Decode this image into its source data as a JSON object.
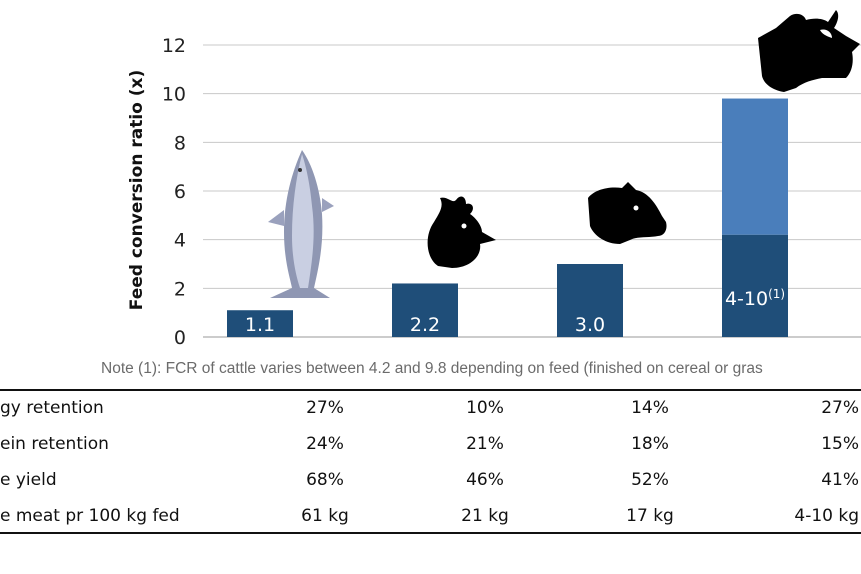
{
  "chart_data": {
    "type": "bar",
    "ylabel": "Feed conversion ratio (x)",
    "ylim": [
      0,
      12
    ],
    "yticks": [
      "0",
      "2",
      "4",
      "6",
      "8",
      "10",
      "12"
    ],
    "grid": true,
    "categories": [
      "Salmon",
      "Chicken",
      "Pig",
      "Cattle"
    ],
    "values": [
      1.1,
      2.2,
      3.0,
      4.2
    ],
    "range_upper": [
      null,
      null,
      null,
      9.8
    ],
    "data_labels": [
      "1.1",
      "2.2",
      "3.0",
      "4-10"
    ],
    "data_label_superscripts": [
      "",
      "",
      "",
      "(1)"
    ],
    "icons": [
      "salmon-icon",
      "chicken-icon",
      "pig-icon",
      "cow-icon"
    ],
    "colors": {
      "bar": "#1f4e79",
      "range": "#4a7ebb",
      "grid": "#c8c8c8"
    }
  },
  "note": "Note (1): FCR of cattle varies between 4.2 and 9.8 depending on feed (finished on cereal or gras",
  "table": {
    "rows": [
      {
        "label": "gy retention",
        "values": [
          "27%",
          "10%",
          "14%",
          "27%"
        ]
      },
      {
        "label": "ein retention",
        "values": [
          "24%",
          "21%",
          "18%",
          "15%"
        ]
      },
      {
        "label": "e yield",
        "values": [
          "68%",
          "46%",
          "52%",
          "41%"
        ]
      },
      {
        "label": "e meat pr 100 kg fed",
        "values": [
          "61 kg",
          "21 kg",
          "17 kg",
          "4-10 kg"
        ]
      }
    ]
  }
}
